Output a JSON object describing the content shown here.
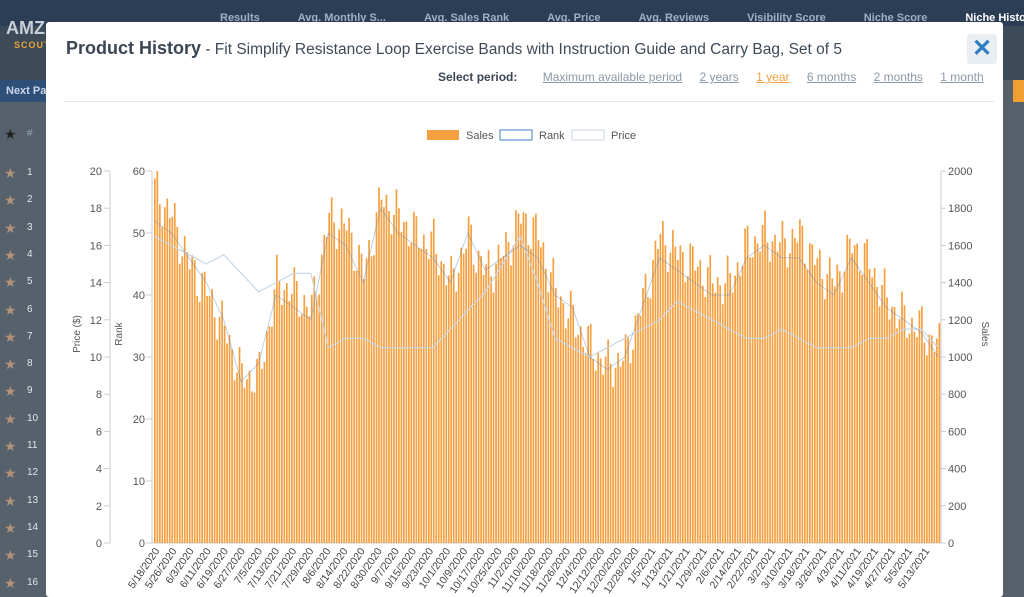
{
  "background": {
    "logo": "AMZ",
    "logo_sub": "SCOUT",
    "tabs": [
      {
        "label": "Results"
      },
      {
        "label": "Avg. Monthly S..."
      },
      {
        "label": "Avg. Sales Rank"
      },
      {
        "label": "Avg. Price"
      },
      {
        "label": "Avg. Reviews"
      },
      {
        "label": "Visibility Score"
      },
      {
        "label": "Niche Score"
      },
      {
        "label": "Niche History"
      }
    ],
    "next_page": "Next Page",
    "hash": "#",
    "rows": [
      "1",
      "2",
      "3",
      "4",
      "5",
      "6",
      "7",
      "8",
      "9",
      "10",
      "11",
      "12",
      "13",
      "14",
      "15",
      "16"
    ]
  },
  "modal": {
    "title_bold": "Product History",
    "title_rest": " - Fit Simplify Resistance Loop Exercise Bands with Instruction Guide and Carry Bag, Set of 5",
    "close_icon": "close-icon",
    "select_period_label": "Select period:",
    "period_options": [
      {
        "label": "Maximum available period"
      },
      {
        "label": "2 years"
      },
      {
        "label": "1 year"
      },
      {
        "label": "6 months"
      },
      {
        "label": "2 months"
      },
      {
        "label": "1 month"
      }
    ],
    "selected_period": "1 year"
  },
  "colors": {
    "sales": "#f5a040",
    "rank": "#3b7fc4",
    "price": "#c8d6e2",
    "accent": "#f5a040"
  },
  "chart_data": {
    "type": "bar",
    "legend": [
      "Sales",
      "Rank",
      "Price"
    ],
    "legend_position": "top-center",
    "axes": {
      "price": {
        "label": "Price ($)",
        "ticks": [
          "0",
          "2",
          "4",
          "6",
          "8",
          "10",
          "12",
          "14",
          "16",
          "18",
          "20"
        ],
        "range": [
          0,
          20
        ]
      },
      "rank": {
        "label": "Rank",
        "ticks": [
          "0",
          "10",
          "20",
          "30",
          "40",
          "50",
          "60"
        ],
        "range": [
          0,
          60
        ]
      },
      "sales": {
        "label": "Sales",
        "ticks": [
          "0",
          "200",
          "400",
          "600",
          "800",
          "1000",
          "1200",
          "1400",
          "1600",
          "1800",
          "2000"
        ],
        "range": [
          0,
          2000
        ]
      }
    },
    "x_labels": [
      "5/18/2020",
      "5/26/2020",
      "6/3/2020",
      "6/11/2020",
      "6/19/2020",
      "6/27/2020",
      "7/5/2020",
      "7/13/2020",
      "7/21/2020",
      "7/29/2020",
      "8/6/2020",
      "8/14/2020",
      "8/22/2020",
      "8/30/2020",
      "9/7/2020",
      "9/15/2020",
      "9/23/2020",
      "10/1/2020",
      "10/9/2020",
      "10/17/2020",
      "10/25/2020",
      "11/2/2020",
      "11/10/2020",
      "11/18/2020",
      "11/26/2020",
      "12/4/2020",
      "12/12/2020",
      "12/20/2020",
      "12/28/2020",
      "1/5/2021",
      "1/13/2021",
      "1/21/2021",
      "1/29/2021",
      "2/6/2021",
      "2/14/2021",
      "2/22/2021",
      "3/2/2021",
      "3/10/2021",
      "3/18/2021",
      "3/26/2021",
      "4/3/2021",
      "4/11/2021",
      "4/19/2021",
      "4/27/2021",
      "5/5/2021",
      "5/13/2021"
    ],
    "sales": [
      1900,
      1750,
      1500,
      1350,
      1150,
      890,
      900,
      1400,
      1350,
      1250,
      1750,
      1700,
      1450,
      1850,
      1750,
      1650,
      1600,
      1400,
      1650,
      1450,
      1550,
      1750,
      1650,
      1350,
      1200,
      1050,
      950,
      1000,
      1300,
      1650,
      1550,
      1500,
      1400,
      1400,
      1600,
      1650,
      1600,
      1650,
      1500,
      1400,
      1600,
      1500,
      1300,
      1200,
      1150,
      1050
    ],
    "rank": [
      52,
      50,
      46,
      42,
      36,
      26,
      29,
      40,
      38,
      36,
      50,
      48,
      42,
      54,
      50,
      48,
      46,
      42,
      50,
      44,
      46,
      48,
      46,
      40,
      38,
      30,
      28,
      30,
      38,
      46,
      44,
      42,
      40,
      40,
      46,
      48,
      46,
      46,
      42,
      40,
      46,
      42,
      38,
      36,
      34,
      30
    ],
    "price": [
      16.5,
      16,
      15.5,
      15,
      15.5,
      14.5,
      13.5,
      14,
      14.5,
      14.5,
      10.5,
      11,
      11,
      10.5,
      10.5,
      10.5,
      10.5,
      11.5,
      12.5,
      13.5,
      15,
      16.5,
      14,
      11,
      10.5,
      10,
      10.5,
      11,
      11.5,
      12,
      13,
      12.5,
      12,
      11.5,
      11,
      11,
      11.5,
      11,
      10.5,
      10.5,
      10.5,
      11,
      11,
      11.5,
      11.5,
      10.5
    ]
  }
}
